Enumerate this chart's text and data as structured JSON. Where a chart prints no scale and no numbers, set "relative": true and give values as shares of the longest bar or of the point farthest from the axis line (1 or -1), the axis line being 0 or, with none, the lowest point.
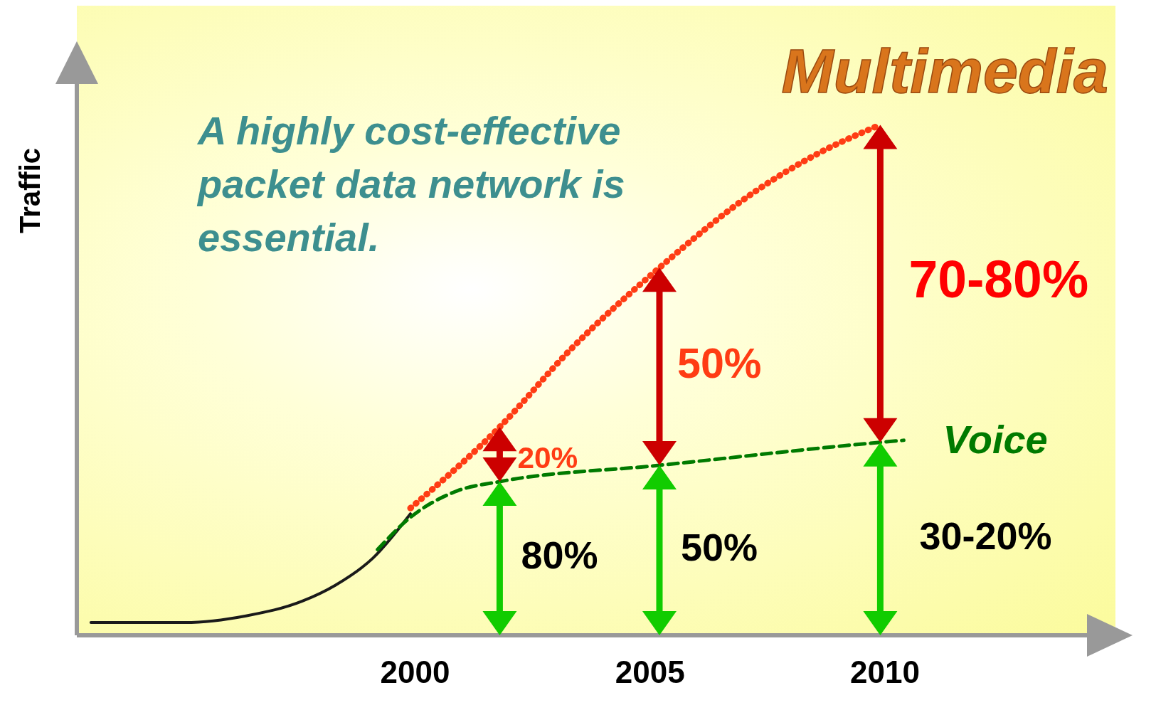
{
  "chart_data": {
    "type": "line",
    "relative": true,
    "ylabel": "Traffic",
    "xlim": [
      1992.8,
      2014.3
    ],
    "xticks": [
      2000,
      2005,
      2010
    ],
    "grid": false,
    "legend": false,
    "marker": "none",
    "series": [
      {
        "color": "#1a1a1a",
        "line_style": "solid",
        "x": [
          1993.1,
          1995.1,
          1996.4,
          1997.6,
          1998.3,
          1999.1,
          1999.9
        ],
        "values": [
          0.025,
          0.025,
          0.038,
          0.067,
          0.098,
          0.151,
          0.238
        ]
      },
      {
        "name": "Multimedia",
        "color": "#ff3c14",
        "line_style": "dotted",
        "x": [
          1999.9,
          2001.8,
          2003.3,
          2005.2,
          2007.2,
          2008.5,
          2009.9
        ],
        "values": [
          0.249,
          0.408,
          0.559,
          0.72,
          0.867,
          0.94,
          1
        ]
      },
      {
        "name": "Voice",
        "color": "#007a00",
        "line_style": "dashed",
        "x": [
          1999.2,
          1999.9,
          2000.9,
          2001.8,
          2005.2,
          2009.9,
          2010.4
        ],
        "values": [
          0.168,
          0.231,
          0.283,
          0.301,
          0.333,
          0.378,
          0.382
        ]
      }
    ],
    "annotations": [
      "A highly cost-effective packet data network is essential.",
      "20%",
      "80%",
      "50%",
      "50%",
      "70-80%",
      "30-20%"
    ]
  }
}
